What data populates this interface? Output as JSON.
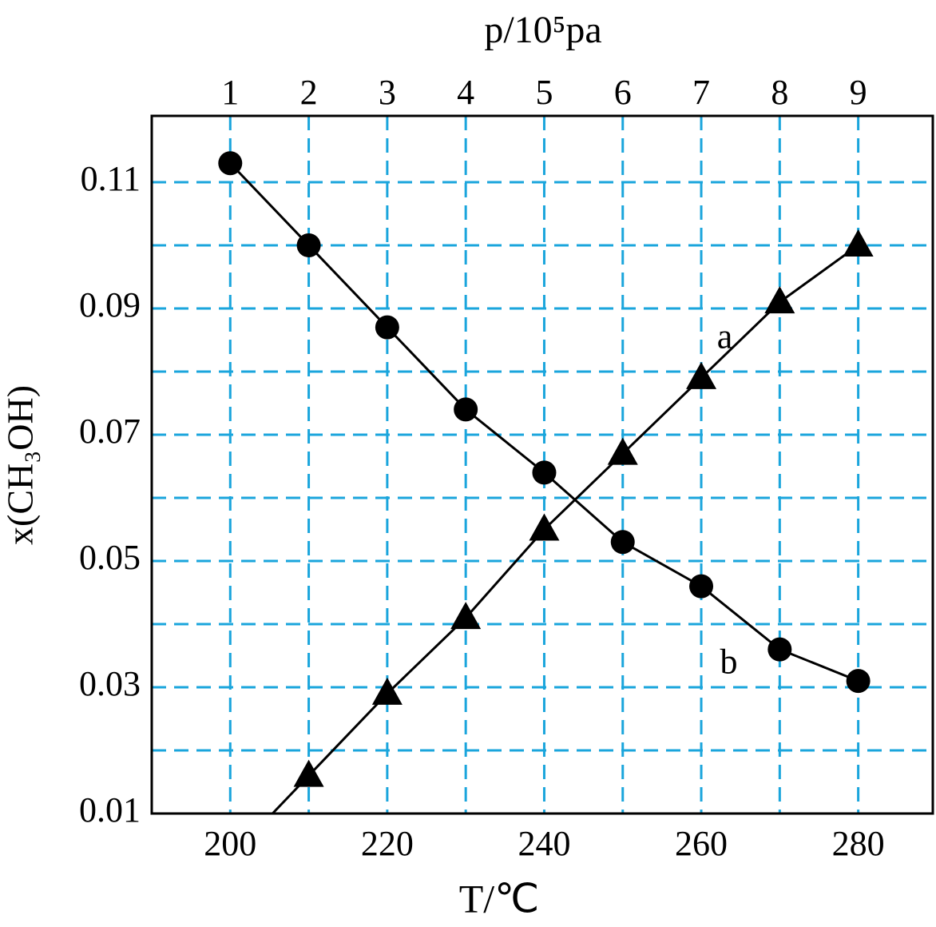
{
  "chart_data": {
    "type": "line",
    "x_label": "T/℃",
    "x2_label": "p/10⁵pa",
    "y_label": "x(CH₃OH)",
    "xlim": [
      190,
      289.5
    ],
    "xticks": [
      200,
      220,
      240,
      260,
      280
    ],
    "xgrid": [
      200,
      210,
      220,
      230,
      240,
      250,
      260,
      270,
      280
    ],
    "x2lim": [
      0,
      9.95
    ],
    "x2ticks": [
      1,
      2,
      3,
      4,
      5,
      6,
      7,
      8,
      9
    ],
    "ylim": [
      0.01,
      0.1205
    ],
    "yticks": [
      0.01,
      0.03,
      0.05,
      0.07,
      0.09,
      0.11
    ],
    "ygrid": [
      0.02,
      0.03,
      0.04,
      0.05,
      0.06,
      0.07,
      0.08,
      0.09,
      0.1,
      0.11
    ],
    "grid": true,
    "grid_color": "#1aa5dc",
    "series": [
      {
        "name": "a",
        "color": "#000000",
        "marker": "triangle",
        "x": [
          210,
          220,
          230,
          240,
          250,
          260,
          270,
          280
        ],
        "values": [
          0.016,
          0.029,
          0.041,
          0.055,
          0.067,
          0.079,
          0.091,
          0.1
        ]
      },
      {
        "name": "b",
        "color": "#000000",
        "marker": "circle",
        "x": [
          200,
          210,
          220,
          230,
          240,
          250,
          260,
          270,
          280
        ],
        "values": [
          0.113,
          0.1,
          0.087,
          0.074,
          0.064,
          0.053,
          0.046,
          0.036,
          0.031
        ]
      }
    ],
    "annotations": [
      {
        "text": "a",
        "x": 263,
        "y": 0.085
      },
      {
        "text": "b",
        "x": 263.5,
        "y": 0.0335
      }
    ]
  }
}
